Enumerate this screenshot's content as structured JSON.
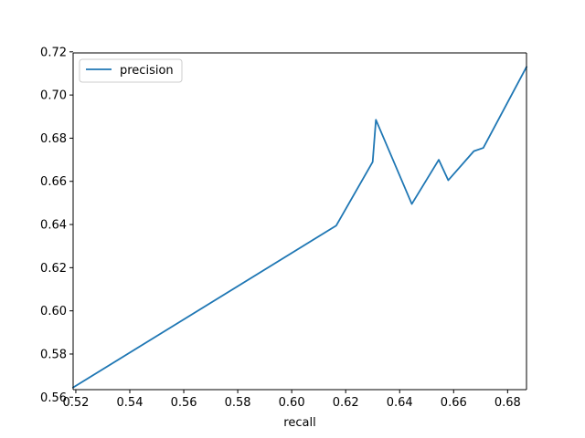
{
  "chart_data": {
    "type": "line",
    "title": "",
    "xlabel": "recall",
    "ylabel": "",
    "xlim": [
      0.519,
      0.687
    ],
    "ylim": [
      0.5635,
      0.7195
    ],
    "xticks": [
      "0.52",
      "0.54",
      "0.56",
      "0.58",
      "0.60",
      "0.62",
      "0.64",
      "0.66",
      "0.68"
    ],
    "yticks": [
      "0.56",
      "0.58",
      "0.60",
      "0.62",
      "0.64",
      "0.66",
      "0.68",
      "0.70",
      "0.72"
    ],
    "grid": false,
    "legend_position": "top-left",
    "series": [
      {
        "name": "precision",
        "color": "#1f77b4",
        "x": [
          0.519,
          0.6165,
          0.63,
          0.6312,
          0.6445,
          0.6545,
          0.658,
          0.6675,
          0.671,
          0.687
        ],
        "y": [
          0.5645,
          0.6395,
          0.669,
          0.6885,
          0.6495,
          0.67,
          0.6605,
          0.674,
          0.6755,
          0.713
        ]
      }
    ]
  }
}
